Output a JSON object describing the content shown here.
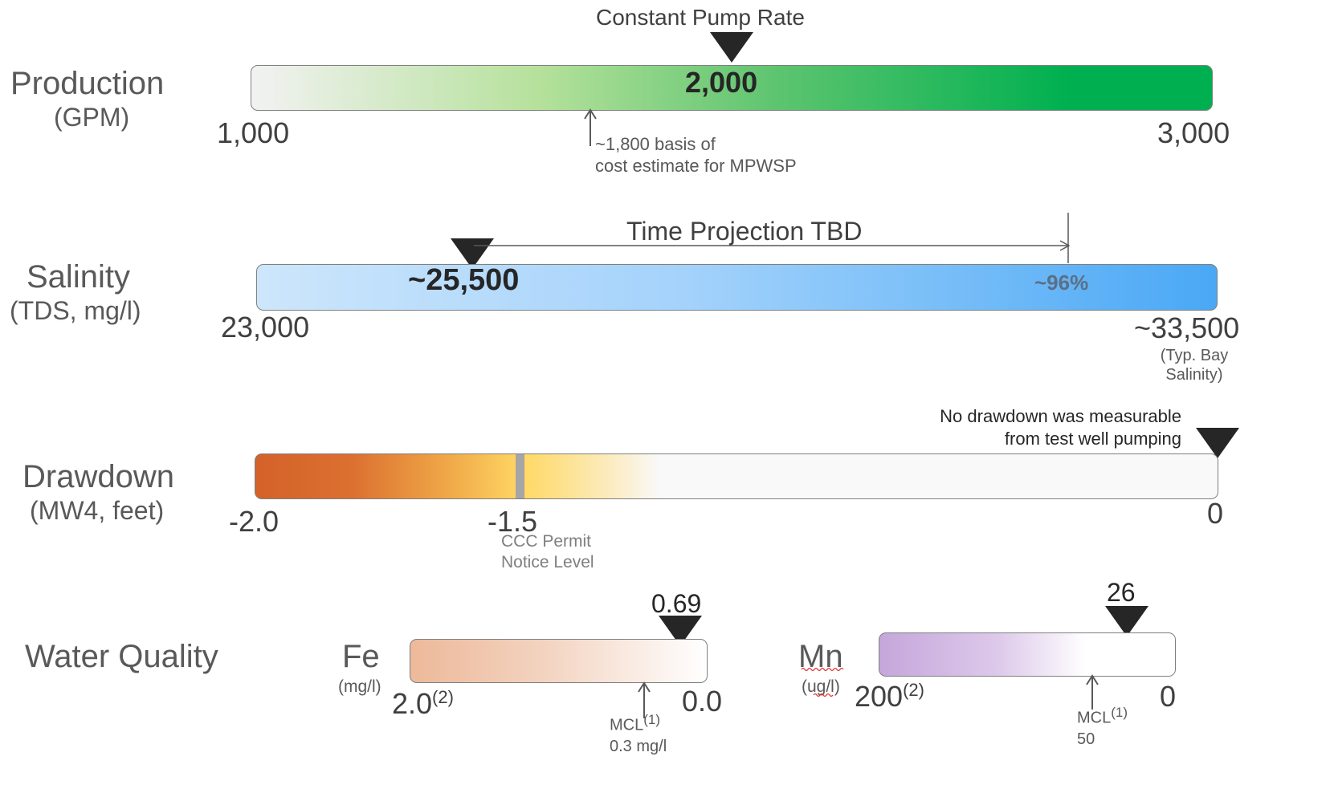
{
  "production": {
    "title": "Production",
    "unit": "(GPM)",
    "marker_label": "Constant Pump Rate",
    "value_label": "2,000",
    "min_label": "1,000",
    "max_label": "3,000",
    "note_line1": "~1,800 basis of",
    "note_line2": "cost estimate for MPWSP",
    "gradient": [
      "#f2f2f2",
      "#b5e19b",
      "#00b050"
    ]
  },
  "salinity": {
    "title": "Salinity",
    "unit": "(TDS, mg/l)",
    "value_label": "~25,500",
    "percent_label": "~96%",
    "projection_label": "Time Projection TBD",
    "min_label": "23,000",
    "max_label": "~33,500",
    "max_note_line1": "(Typ. Bay",
    "max_note_line2": "Salinity)",
    "gradient": [
      "#cde6fb",
      "#4aa8f5"
    ]
  },
  "drawdown": {
    "title": "Drawdown",
    "unit": "(MW4, feet)",
    "min_label": "-2.0",
    "mid_label": "-1.5",
    "max_label": "0",
    "mid_note_line1": "CCC Permit",
    "mid_note_line2": "Notice Level",
    "marker_note_line1": "No drawdown  was measurable",
    "marker_note_line2": "from test well pumping",
    "gradient": [
      "#d4622a",
      "#ffd966",
      "#f9f9f9"
    ]
  },
  "water_quality": {
    "title": "Water Quality",
    "fe": {
      "name": "Fe",
      "unit": "(mg/l)",
      "value_label": "0.69",
      "min_label": "2.0",
      "min_sup": "(2)",
      "max_label": "0.0",
      "mcl_label": "MCL",
      "mcl_sup": "(1)",
      "mcl_value": "0.3 mg/l",
      "gradient": [
        "#edb99a",
        "#ffffff"
      ]
    },
    "mn": {
      "name": "Mn",
      "unit": "(ug/l)",
      "value_label": "26",
      "min_label": "200",
      "min_sup": "(2)",
      "max_label": "0",
      "mcl_label": "MCL",
      "mcl_sup": "(1)",
      "mcl_value": "50",
      "gradient": [
        "#c5a6db",
        "#ffffff"
      ]
    }
  }
}
